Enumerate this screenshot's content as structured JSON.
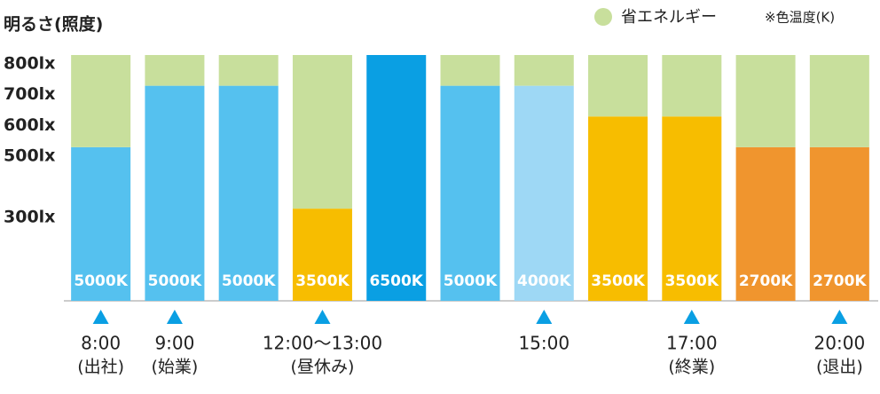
{
  "chart_data": {
    "type": "stacked_bar",
    "title": "明るさ(照度)",
    "note": "※色温度(K)",
    "categories": [
      "8:00",
      "9:00",
      null,
      "12:00～13:00",
      null,
      null,
      "15:00",
      null,
      "17:00",
      null,
      "20:00"
    ],
    "category_notes": [
      "(出社)",
      "(始業)",
      null,
      "(昼休み)",
      null,
      null,
      null,
      null,
      "(終業)",
      null,
      "(退出)"
    ],
    "series": [
      {
        "values": [
          500,
          700,
          700,
          300,
          800,
          700,
          700,
          600,
          600,
          500,
          500
        ],
        "colors": [
          "#55c1ef",
          "#55c1ef",
          "#55c1ef",
          "#f7bd00",
          "#0a9fe3",
          "#55c1ef",
          "#9ed8f5",
          "#f7bd00",
          "#f7bd00",
          "#f0952e",
          "#f0952e"
        ],
        "color_temperatures": [
          "5000K",
          "5000K",
          "5000K",
          "3500K",
          "6500K",
          "5000K",
          "4000K",
          "3500K",
          "3500K",
          "2700K",
          "2700K"
        ]
      },
      {
        "name": "省エネルギー",
        "color": "#c8df9c",
        "values": [
          300,
          100,
          100,
          500,
          0,
          100,
          100,
          200,
          200,
          300,
          300
        ]
      }
    ],
    "ylim": [
      0,
      800
    ],
    "yticks": [
      {
        "value": 300,
        "label": "300lx"
      },
      {
        "value": 500,
        "label": "500lx"
      },
      {
        "value": 600,
        "label": "600lx"
      },
      {
        "value": 700,
        "label": "700lx"
      },
      {
        "value": 800,
        "label": "800lx"
      }
    ]
  }
}
